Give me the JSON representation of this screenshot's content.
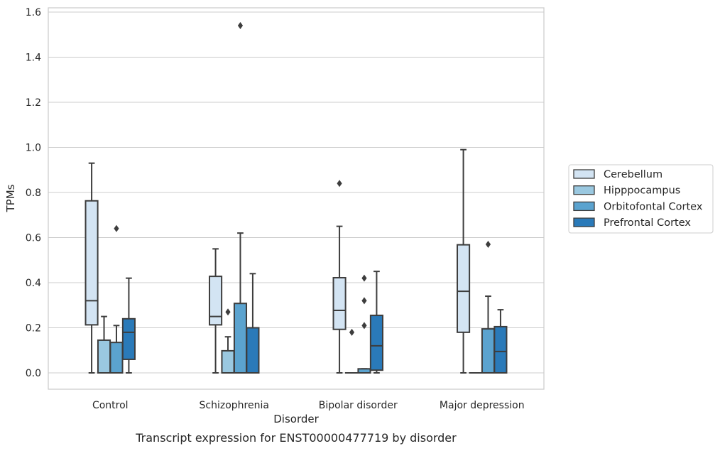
{
  "chart_data": {
    "type": "boxplot",
    "xlabel": "Disorder",
    "ylabel": "TPMs",
    "caption": "Transcript expression for ENST00000477719 by disorder",
    "ylim": [
      -0.075,
      1.62
    ],
    "yticks": [
      "0.0",
      "0.2",
      "0.4",
      "0.6",
      "0.8",
      "1.0",
      "1.2",
      "1.4",
      "1.6"
    ],
    "ytick_values": [
      0.0,
      0.2,
      0.4,
      0.6,
      0.8,
      1.0,
      1.2,
      1.4,
      1.6
    ],
    "grid": "horizontal",
    "legend_position": "right",
    "categories": [
      "Control",
      "Schizophrenia",
      "Bipolar disorder",
      "Major depression"
    ],
    "series": [
      {
        "name": "Cerebellum",
        "color": "#d3e4f3",
        "boxes": [
          {
            "whislo": 0.0,
            "q1": 0.213,
            "med": 0.32,
            "q3": 0.763,
            "whishi": 0.93,
            "fliers": []
          },
          {
            "whislo": 0.0,
            "q1": 0.213,
            "med": 0.25,
            "q3": 0.428,
            "whishi": 0.55,
            "fliers": []
          },
          {
            "whislo": 0.0,
            "q1": 0.193,
            "med": 0.277,
            "q3": 0.422,
            "whishi": 0.65,
            "fliers": [
              0.84
            ]
          },
          {
            "whislo": 0.0,
            "q1": 0.18,
            "med": 0.362,
            "q3": 0.568,
            "whishi": 0.99,
            "fliers": []
          }
        ]
      },
      {
        "name": "Hipppocampus",
        "color": "#9ac8e0",
        "boxes": [
          {
            "whislo": 0.0,
            "q1": 0.0,
            "med": 0.0,
            "q3": 0.145,
            "whishi": 0.25,
            "fliers": []
          },
          {
            "whislo": 0.0,
            "q1": 0.0,
            "med": 0.0,
            "q3": 0.098,
            "whishi": 0.16,
            "fliers": [
              0.27
            ]
          },
          {
            "whislo": 0.0,
            "q1": 0.0,
            "med": 0.0,
            "q3": 0.0,
            "whishi": 0.0,
            "fliers": [
              0.18
            ]
          },
          {
            "whislo": 0.0,
            "q1": 0.0,
            "med": 0.0,
            "q3": 0.0,
            "whishi": 0.0,
            "fliers": []
          }
        ]
      },
      {
        "name": "Orbitofontal Cortex",
        "color": "#5ba3cf",
        "boxes": [
          {
            "whislo": 0.0,
            "q1": 0.0,
            "med": 0.0,
            "q3": 0.135,
            "whishi": 0.21,
            "fliers": [
              0.64
            ]
          },
          {
            "whislo": 0.0,
            "q1": 0.0,
            "med": 0.0,
            "q3": 0.308,
            "whishi": 0.62,
            "fliers": [
              1.54
            ]
          },
          {
            "whislo": 0.0,
            "q1": 0.0,
            "med": 0.0,
            "q3": 0.018,
            "whishi": 0.018,
            "fliers": [
              0.21,
              0.32,
              0.42
            ]
          },
          {
            "whislo": 0.0,
            "q1": 0.0,
            "med": 0.0,
            "q3": 0.195,
            "whishi": 0.34,
            "fliers": [
              0.57
            ]
          }
        ]
      },
      {
        "name": "Prefrontal Cortex",
        "color": "#2a7ab9",
        "boxes": [
          {
            "whislo": 0.0,
            "q1": 0.06,
            "med": 0.18,
            "q3": 0.24,
            "whishi": 0.42,
            "fliers": []
          },
          {
            "whislo": 0.0,
            "q1": 0.0,
            "med": 0.0,
            "q3": 0.2,
            "whishi": 0.44,
            "fliers": []
          },
          {
            "whislo": 0.0,
            "q1": 0.012,
            "med": 0.12,
            "q3": 0.255,
            "whishi": 0.45,
            "fliers": []
          },
          {
            "whislo": 0.0,
            "q1": 0.0,
            "med": 0.095,
            "q3": 0.205,
            "whishi": 0.28,
            "fliers": []
          }
        ]
      }
    ]
  }
}
